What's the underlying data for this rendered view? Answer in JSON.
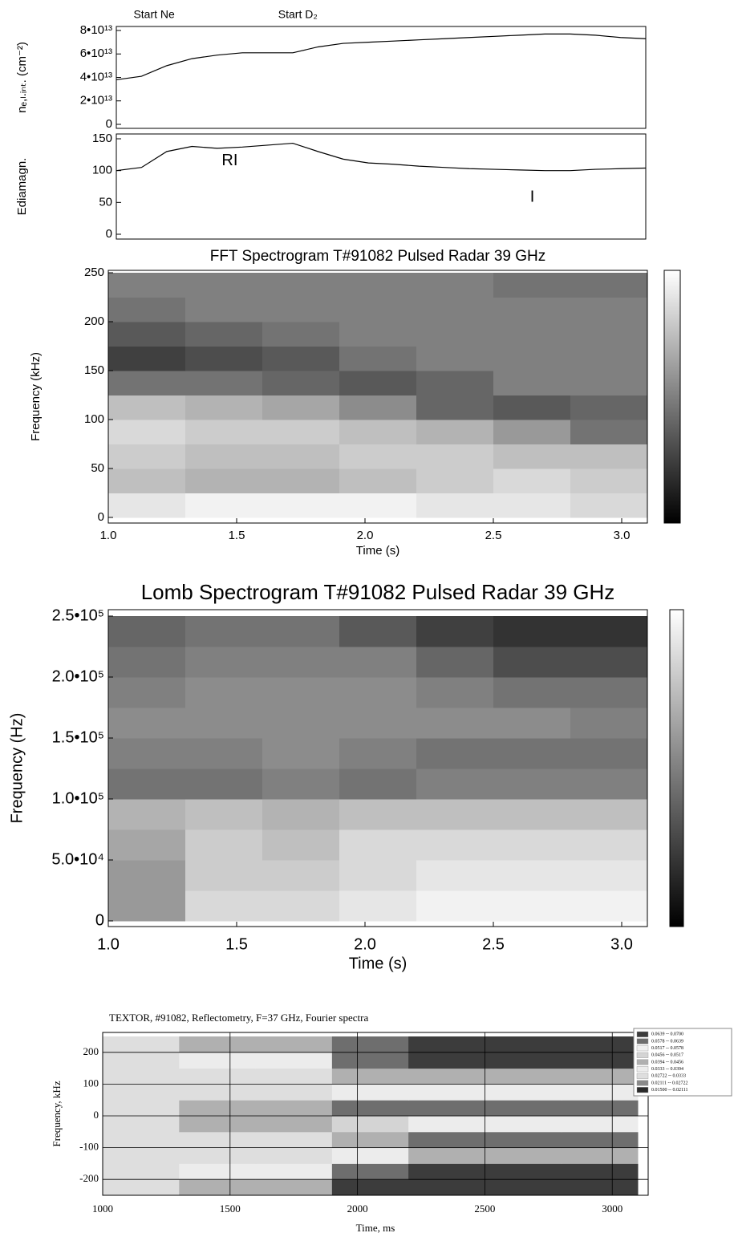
{
  "chart_data": [
    {
      "type": "line",
      "ylabel": "nₑ,ₗ.ᵢₙₜ. (cm⁻²)",
      "annotations": [
        {
          "text": "Start Ne",
          "x": 1.15
        },
        {
          "text": "Start D₂",
          "x": 1.72
        }
      ],
      "x": [
        1.0,
        1.1,
        1.2,
        1.3,
        1.4,
        1.5,
        1.6,
        1.7,
        1.8,
        1.9,
        2.0,
        2.1,
        2.2,
        2.3,
        2.4,
        2.5,
        2.6,
        2.7,
        2.8,
        2.9,
        3.0,
        3.1
      ],
      "values": [
        38000000000000.0,
        41000000000000.0,
        50000000000000.0,
        56000000000000.0,
        59000000000000.0,
        61000000000000.0,
        61000000000000.0,
        61000000000000.0,
        66000000000000.0,
        69000000000000.0,
        70000000000000.0,
        71000000000000.0,
        72000000000000.0,
        73000000000000.0,
        74000000000000.0,
        75000000000000.0,
        76000000000000.0,
        77000000000000.0,
        77000000000000.0,
        76000000000000.0,
        74000000000000.0,
        73000000000000.0
      ],
      "color": "#000000",
      "xlim": [
        1.0,
        3.1
      ],
      "ylim": [
        0,
        80000000000000.0
      ],
      "yticks": [
        0,
        {
          "value": 20000000000000.0,
          "label": "2•10¹³"
        },
        {
          "value": 40000000000000.0,
          "label": "4•10¹³"
        },
        {
          "value": 60000000000000.0,
          "label": "6•10¹³"
        },
        {
          "value": 80000000000000.0,
          "label": "8•10¹³"
        }
      ]
    },
    {
      "type": "line",
      "ylabel": "Ediamagn.",
      "annotations": [
        {
          "text": "RI",
          "x": 1.45,
          "y": 115
        },
        {
          "text": "I",
          "x": 2.65,
          "y": 58
        }
      ],
      "x": [
        1.0,
        1.1,
        1.2,
        1.3,
        1.4,
        1.5,
        1.6,
        1.7,
        1.8,
        1.9,
        2.0,
        2.1,
        2.2,
        2.3,
        2.4,
        2.5,
        2.6,
        2.7,
        2.8,
        2.9,
        3.0,
        3.1
      ],
      "values": [
        100,
        105,
        130,
        138,
        135,
        137,
        140,
        143,
        130,
        118,
        112,
        110,
        107,
        105,
        103,
        102,
        101,
        100,
        100,
        102,
        103,
        104
      ],
      "color": "#000000",
      "xlim": [
        1.0,
        3.1
      ],
      "ylim": [
        0,
        150
      ],
      "yticks": [
        0,
        50,
        100,
        150
      ]
    },
    {
      "type": "heatmap",
      "title": "FFT Spectrogram T#91082 Pulsed Radar 39 GHz",
      "xlabel": "Time (s)",
      "ylabel": "Frequency (kHz)",
      "xlim": [
        1.0,
        3.1
      ],
      "ylim": [
        0,
        250
      ],
      "xticks": [
        {
          "value": 1,
          "label": "1.0"
        },
        1.5,
        {
          "value": 2,
          "label": "2.0"
        },
        2.5,
        {
          "value": 3,
          "label": "3.0"
        }
      ],
      "yticks": [
        0,
        50,
        100,
        150,
        200,
        250
      ],
      "x": [
        1.0,
        1.3,
        1.6,
        1.9,
        2.2,
        2.5,
        2.8,
        3.1
      ],
      "y": [
        0,
        25,
        50,
        75,
        100,
        125,
        150,
        175,
        200,
        225,
        250
      ],
      "values": [
        [
          0.9,
          0.95,
          0.95,
          0.95,
          0.9,
          0.9,
          0.85
        ],
        [
          0.75,
          0.7,
          0.7,
          0.75,
          0.8,
          0.85,
          0.8
        ],
        [
          0.8,
          0.75,
          0.75,
          0.8,
          0.8,
          0.75,
          0.75
        ],
        [
          0.85,
          0.8,
          0.8,
          0.75,
          0.7,
          0.6,
          0.45
        ],
        [
          0.75,
          0.7,
          0.65,
          0.55,
          0.4,
          0.35,
          0.4
        ],
        [
          0.45,
          0.45,
          0.4,
          0.35,
          0.4,
          0.5,
          0.5
        ],
        [
          0.25,
          0.3,
          0.35,
          0.45,
          0.5,
          0.5,
          0.5
        ],
        [
          0.35,
          0.4,
          0.45,
          0.5,
          0.5,
          0.5,
          0.5
        ],
        [
          0.45,
          0.5,
          0.5,
          0.5,
          0.5,
          0.5,
          0.5
        ],
        [
          0.5,
          0.5,
          0.5,
          0.5,
          0.5,
          0.45,
          0.45
        ]
      ],
      "zlim": [
        0,
        1
      ],
      "colormap": "gray",
      "colorbar": true
    },
    {
      "type": "heatmap",
      "title": "Lomb Spectrogram T#91082 Pulsed Radar 39 GHz",
      "xlabel": "Time (s)",
      "ylabel": "Frequency (Hz)",
      "xlim": [
        1.0,
        3.1
      ],
      "ylim": [
        0,
        250000
      ],
      "xticks": [
        {
          "value": 1,
          "label": "1.0"
        },
        1.5,
        {
          "value": 2,
          "label": "2.0"
        },
        2.5,
        {
          "value": 3,
          "label": "3.0"
        }
      ],
      "yticks": [
        0,
        {
          "value": 50000,
          "label": "5.0•10⁴"
        },
        {
          "value": 100000,
          "label": "1.0•10⁵"
        },
        {
          "value": 150000,
          "label": "1.5•10⁵"
        },
        {
          "value": 200000,
          "label": "2.0•10⁵"
        },
        {
          "value": 250000,
          "label": "2.5•10⁵"
        }
      ],
      "x": [
        1.0,
        1.3,
        1.6,
        1.9,
        2.2,
        2.5,
        2.8,
        3.1
      ],
      "y": [
        0,
        25000,
        50000,
        75000,
        100000,
        125000,
        150000,
        175000,
        200000,
        225000,
        250000
      ],
      "values": [
        [
          0.6,
          0.85,
          0.85,
          0.9,
          0.95,
          0.95,
          0.95
        ],
        [
          0.6,
          0.8,
          0.8,
          0.85,
          0.9,
          0.9,
          0.9
        ],
        [
          0.65,
          0.8,
          0.75,
          0.85,
          0.85,
          0.85,
          0.85
        ],
        [
          0.7,
          0.75,
          0.7,
          0.75,
          0.75,
          0.75,
          0.75
        ],
        [
          0.45,
          0.45,
          0.5,
          0.45,
          0.5,
          0.5,
          0.5
        ],
        [
          0.5,
          0.5,
          0.55,
          0.5,
          0.45,
          0.45,
          0.45
        ],
        [
          0.55,
          0.55,
          0.55,
          0.55,
          0.55,
          0.55,
          0.5
        ],
        [
          0.5,
          0.55,
          0.55,
          0.55,
          0.5,
          0.45,
          0.45
        ],
        [
          0.45,
          0.5,
          0.5,
          0.5,
          0.4,
          0.3,
          0.3
        ],
        [
          0.4,
          0.45,
          0.45,
          0.35,
          0.25,
          0.2,
          0.2
        ]
      ],
      "zlim": [
        0,
        1
      ],
      "colormap": "gray",
      "colorbar": true
    },
    {
      "type": "heatmap",
      "title": "TEXTOR, #91082, Reflectometry, F=37 GHz, Fourier spectra",
      "xlabel": "Time, ms",
      "ylabel": "Frequency, kHz",
      "xlim": [
        1000,
        3100
      ],
      "ylim": [
        -250,
        250
      ],
      "grid": true,
      "xticks": [
        1000,
        1500,
        2000,
        2500,
        3000
      ],
      "yticks": [
        -200,
        -100,
        0,
        100,
        200
      ],
      "x": [
        1000,
        1300,
        1600,
        1900,
        2200,
        2500,
        2800,
        3100
      ],
      "y": [
        -250,
        -200,
        -150,
        -100,
        -50,
        0,
        50,
        100,
        150,
        200,
        250
      ],
      "values": [
        [
          0.03,
          0.045,
          0.045,
          0.066,
          0.066,
          0.066,
          0.066
        ],
        [
          0.03,
          0.035,
          0.035,
          0.06,
          0.066,
          0.066,
          0.066
        ],
        [
          0.03,
          0.03,
          0.03,
          0.035,
          0.04,
          0.04,
          0.04
        ],
        [
          0.03,
          0.03,
          0.03,
          0.045,
          0.06,
          0.06,
          0.06
        ],
        [
          0.03,
          0.045,
          0.045,
          0.05,
          0.035,
          0.035,
          0.035
        ],
        [
          0.03,
          0.045,
          0.045,
          0.06,
          0.06,
          0.06,
          0.06
        ],
        [
          0.03,
          0.03,
          0.03,
          0.035,
          0.035,
          0.035,
          0.035
        ],
        [
          0.03,
          0.03,
          0.03,
          0.04,
          0.04,
          0.04,
          0.04
        ],
        [
          0.03,
          0.035,
          0.035,
          0.06,
          0.066,
          0.066,
          0.066
        ],
        [
          0.03,
          0.045,
          0.045,
          0.06,
          0.066,
          0.066,
          0.066
        ]
      ],
      "levels": [
        {
          "min": 0.0639,
          "max": 0.07,
          "label": "0.0639 -- 0.0700",
          "color": "#3c3c3c"
        },
        {
          "min": 0.0578,
          "max": 0.0639,
          "label": "0.0578 -- 0.0639",
          "color": "#6e6e6e"
        },
        {
          "min": 0.0517,
          "max": 0.0578,
          "label": "0.0517 -- 0.0578",
          "color": "#f0f0f0"
        },
        {
          "min": 0.0456,
          "max": 0.0517,
          "label": "0.0456 -- 0.0517",
          "color": "#d4d4d4"
        },
        {
          "min": 0.0394,
          "max": 0.0456,
          "label": "0.0394 -- 0.0456",
          "color": "#b0b0b0"
        },
        {
          "min": 0.0333,
          "max": 0.0394,
          "label": "0.0333 -- 0.0394",
          "color": "#ececec"
        },
        {
          "min": 0.02722,
          "max": 0.0333,
          "label": "0.02722 -- 0.0333",
          "color": "#dedede"
        },
        {
          "min": 0.02111,
          "max": 0.02722,
          "label": "0.02111 -- 0.02722",
          "color": "#8a8a8a"
        },
        {
          "min": 0.015,
          "max": 0.02111,
          "label": "0.01500 -- 0.02111",
          "color": "#2a2a2a"
        }
      ]
    }
  ]
}
